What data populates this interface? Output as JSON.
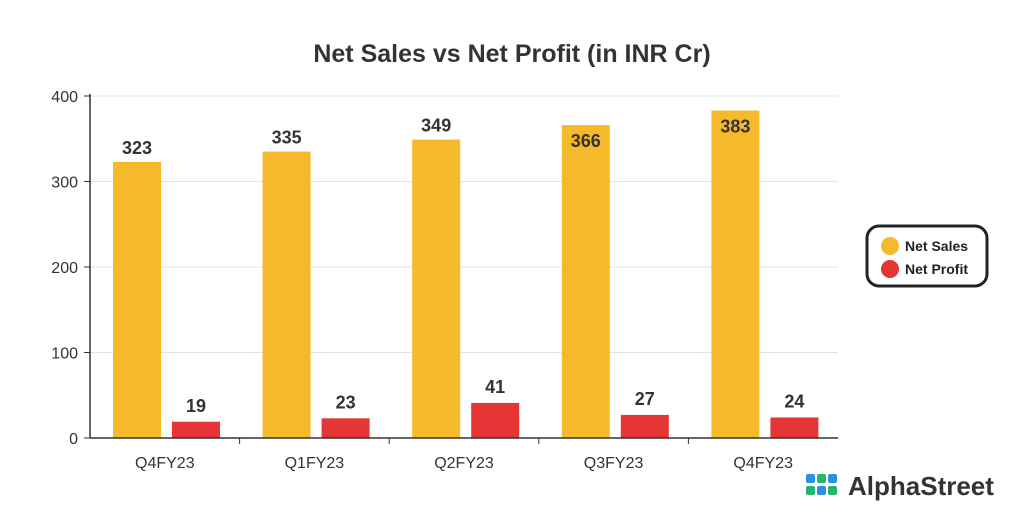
{
  "chart_data": {
    "type": "bar",
    "title": "Net Sales vs Net Profit (in INR Cr)",
    "xlabel": "",
    "ylabel": "",
    "categories": [
      "Q4FY23",
      "Q1FY23",
      "Q2FY23",
      "Q3FY23",
      "Q4FY23"
    ],
    "series": [
      {
        "name": "Net Sales",
        "values": [
          323,
          335,
          349,
          366,
          383
        ],
        "color": "#F6B92B"
      },
      {
        "name": "Net Profit",
        "values": [
          19,
          23,
          41,
          27,
          24
        ],
        "color": "#E53535"
      }
    ],
    "ylim": [
      0,
      400
    ],
    "yticks": [
      0,
      100,
      200,
      300,
      400
    ],
    "grid": true,
    "legend_position": "right"
  },
  "brand": {
    "name": "AlphaStreet",
    "logo_icon": "alphastreet-logo-icon"
  }
}
